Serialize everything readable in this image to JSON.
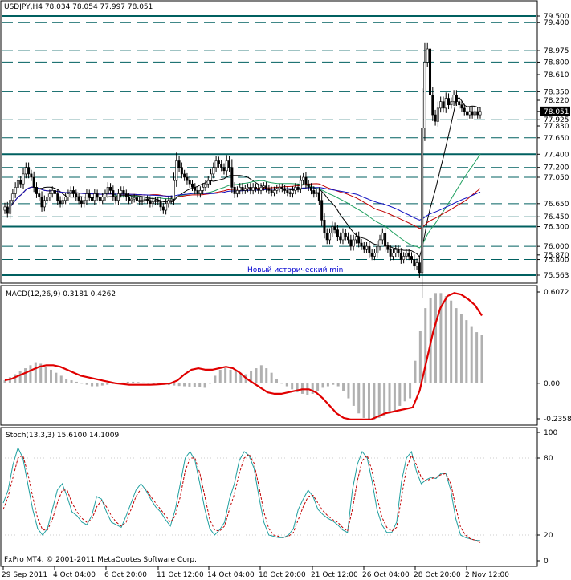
{
  "header": {
    "text": "USDJPY,H4  78.034 78.054 77.997 78.051"
  },
  "annotation": "Новый исторический min",
  "copyright": "FxPro MT4, © 2001-2011 MetaQuotes Software Corp.",
  "colors": {
    "frame": "#000000",
    "level": "#006060",
    "ma_black": "#000000",
    "ma_blue": "#1010c0",
    "ma_red": "#c00000",
    "ma_green": "#20a060",
    "macd_hist": "#b0b0b0",
    "macd_signal": "#e00000",
    "stoch_main": "#20a0a0",
    "stoch_signal": "#c00000",
    "annotation": "#0000d0"
  },
  "chart_data": [
    {
      "type": "candlestick",
      "title": "USDJPY,H4  78.034 78.054 77.997 78.051",
      "ylim": [
        75.5,
        79.55
      ],
      "price_labels": [
        "79.500",
        "79.400",
        "78.975",
        "78.800",
        "78.610",
        "78.350",
        "78.220",
        "78.051",
        "77.925",
        "77.830",
        "77.650",
        "77.400",
        "77.200",
        "77.050",
        "76.650",
        "76.450",
        "76.300",
        "76.000",
        "75.870",
        "75.800",
        "75.563"
      ],
      "price_values": [
        79.5,
        79.4,
        78.975,
        78.8,
        78.61,
        78.35,
        78.22,
        78.051,
        77.925,
        77.83,
        77.65,
        77.4,
        77.2,
        77.05,
        76.65,
        76.45,
        76.3,
        76.0,
        75.87,
        75.8,
        75.563
      ],
      "current_price": 78.051,
      "horizontal_levels": {
        "solid": [
          79.5,
          77.4,
          76.3,
          75.563
        ],
        "dashed": [
          79.4,
          78.975,
          78.8,
          78.35,
          77.925,
          77.65,
          77.2,
          77.05,
          76.65,
          76.45,
          76.0,
          75.8
        ]
      },
      "x_labels": [
        "29 Sep 2011",
        "4 Oct 04:00",
        "6 Oct 20:00",
        "11 Oct 12:00",
        "14 Oct 04:00",
        "18 Oct 20:00",
        "21 Oct 12:00",
        "26 Oct 04:00",
        "28 Oct 20:00",
        "2 Nov 12:00"
      ],
      "closes": [
        76.6,
        76.5,
        76.7,
        76.8,
        76.9,
        77.0,
        76.95,
        77.1,
        77.2,
        77.1,
        77.05,
        76.9,
        76.8,
        76.75,
        76.6,
        76.7,
        76.75,
        76.8,
        76.85,
        76.8,
        76.7,
        76.65,
        76.7,
        76.75,
        76.8,
        76.85,
        76.8,
        76.75,
        76.7,
        76.65,
        76.7,
        76.8,
        76.75,
        76.7,
        76.8,
        76.75,
        76.7,
        76.75,
        76.8,
        76.9,
        76.85,
        76.75,
        76.7,
        76.8,
        76.85,
        76.8,
        76.75,
        76.7,
        76.72,
        76.74,
        76.7,
        76.68,
        76.7,
        76.72,
        76.7,
        76.65,
        76.68,
        76.7,
        76.68,
        76.6,
        76.55,
        76.65,
        76.7,
        76.72,
        77.0,
        77.3,
        77.2,
        77.1,
        77.05,
        77.0,
        76.95,
        76.9,
        76.85,
        76.8,
        76.85,
        76.9,
        76.95,
        77.0,
        77.1,
        77.2,
        77.3,
        77.25,
        77.2,
        77.15,
        77.3,
        77.2,
        76.9,
        76.8,
        76.85,
        76.9,
        76.85,
        76.88,
        76.9,
        76.85,
        76.9,
        76.88,
        76.85,
        76.9,
        76.92,
        76.88,
        76.85,
        76.82,
        76.85,
        76.88,
        76.9,
        76.88,
        76.85,
        76.82,
        76.8,
        76.85,
        76.9,
        76.88,
        77.0,
        77.05,
        76.95,
        76.9,
        76.85,
        76.8,
        76.82,
        76.7,
        76.4,
        76.2,
        76.1,
        76.2,
        76.3,
        76.25,
        76.15,
        76.1,
        76.2,
        76.15,
        76.1,
        76.0,
        76.1,
        76.15,
        76.05,
        76.0,
        75.95,
        76.0,
        75.9,
        75.85,
        75.9,
        76.0,
        76.1,
        76.2,
        76.0,
        75.95,
        75.85,
        75.9,
        75.95,
        75.9,
        75.8,
        75.85,
        75.9,
        75.85,
        75.8,
        75.7,
        75.75,
        75.6,
        77.8,
        78.8,
        79.0,
        78.3,
        78.0,
        77.9,
        78.1,
        78.2,
        78.1,
        78.25,
        78.15,
        78.2,
        78.3,
        78.2,
        78.15,
        78.1,
        78.05,
        78.0,
        78.05,
        78.0,
        78.05,
        78.0,
        78.051
      ]
    },
    {
      "type": "bar",
      "title": "MACD(12,26,9) 0.3181 0.4262",
      "ylim": [
        -0.2358,
        0.6072
      ],
      "tick_labels": [
        "0.6072",
        "0.00",
        "-0.2358"
      ],
      "tick_values": [
        0.6072,
        0.0,
        -0.2358
      ],
      "histogram": [
        0.02,
        0.04,
        0.06,
        0.08,
        0.1,
        0.12,
        0.14,
        0.13,
        0.11,
        0.09,
        0.07,
        0.05,
        0.03,
        0.02,
        0.01,
        0.0,
        -0.01,
        -0.02,
        -0.02,
        -0.015,
        -0.01,
        -0.005,
        0.0,
        0.005,
        0.01,
        0.01,
        0.008,
        0.005,
        0.0,
        -0.005,
        -0.01,
        -0.01,
        -0.012,
        -0.015,
        -0.018,
        -0.02,
        -0.022,
        -0.024,
        -0.026,
        -0.03,
        0.0,
        0.05,
        0.09,
        0.1,
        0.09,
        0.08,
        0.07,
        0.06,
        0.08,
        0.1,
        0.12,
        0.1,
        0.07,
        0.03,
        0.0,
        -0.02,
        -0.04,
        -0.06,
        -0.07,
        -0.08,
        -0.07,
        -0.05,
        -0.03,
        -0.02,
        -0.01,
        -0.02,
        -0.05,
        -0.1,
        -0.15,
        -0.2,
        -0.23,
        -0.24,
        -0.24,
        -0.23,
        -0.22,
        -0.2,
        -0.18,
        -0.15,
        -0.12,
        -0.1,
        0.15,
        0.35,
        0.5,
        0.57,
        0.6,
        0.6,
        0.58,
        0.55,
        0.5,
        0.46,
        0.42,
        0.38,
        0.34,
        0.32
      ],
      "signal": [
        0.02,
        0.03,
        0.05,
        0.07,
        0.09,
        0.11,
        0.12,
        0.12,
        0.11,
        0.09,
        0.07,
        0.05,
        0.04,
        0.03,
        0.02,
        0.01,
        0.0,
        -0.005,
        -0.01,
        -0.01,
        -0.01,
        -0.01,
        -0.008,
        -0.005,
        0.0,
        0.02,
        0.06,
        0.09,
        0.1,
        0.09,
        0.09,
        0.1,
        0.11,
        0.1,
        0.07,
        0.03,
        0.0,
        -0.03,
        -0.06,
        -0.07,
        -0.07,
        -0.06,
        -0.05,
        -0.04,
        -0.04,
        -0.06,
        -0.1,
        -0.15,
        -0.2,
        -0.23,
        -0.24,
        -0.24,
        -0.24,
        -0.24,
        -0.22,
        -0.2,
        -0.19,
        -0.18,
        -0.17,
        -0.16,
        -0.05,
        0.15,
        0.35,
        0.5,
        0.58,
        0.6,
        0.59,
        0.56,
        0.52,
        0.45
      ]
    },
    {
      "type": "line",
      "title": "Stoch(13,3,3) 15.6100 14.1009",
      "ylim": [
        0,
        100
      ],
      "tick_labels": [
        "100",
        "80",
        "20",
        "0"
      ],
      "tick_values": [
        100,
        80,
        20,
        0
      ],
      "series": [
        {
          "name": "",
          "values": [
            45,
            55,
            75,
            88,
            80,
            60,
            40,
            25,
            20,
            25,
            40,
            55,
            60,
            50,
            38,
            35,
            30,
            28,
            35,
            50,
            48,
            38,
            30,
            28,
            26,
            35,
            45,
            55,
            60,
            55,
            48,
            42,
            38,
            32,
            27,
            40,
            60,
            80,
            85,
            78,
            60,
            40,
            25,
            20,
            24,
            30,
            48,
            60,
            78,
            85,
            82,
            72,
            50,
            30,
            20,
            19,
            18,
            18,
            20,
            25,
            40,
            48,
            55,
            50,
            40,
            36,
            33,
            31,
            28,
            24,
            22,
            55,
            75,
            85,
            80,
            62,
            40,
            28,
            22,
            22,
            30,
            62,
            80,
            85,
            70,
            60,
            63,
            65,
            64,
            68,
            68,
            55,
            33,
            20,
            18,
            17,
            16,
            15.61
          ]
        },
        {
          "name": "",
          "values": [
            40,
            50,
            65,
            80,
            82,
            68,
            50,
            33,
            24,
            24,
            32,
            45,
            55,
            55,
            45,
            38,
            33,
            30,
            32,
            42,
            47,
            42,
            35,
            30,
            27,
            30,
            40,
            50,
            56,
            56,
            50,
            45,
            40,
            35,
            30,
            35,
            50,
            70,
            80,
            80,
            68,
            50,
            32,
            24,
            23,
            27,
            40,
            52,
            68,
            80,
            83,
            76,
            58,
            38,
            25,
            20,
            19,
            18,
            19,
            22,
            32,
            42,
            50,
            51,
            45,
            39,
            35,
            32,
            30,
            26,
            23,
            40,
            62,
            78,
            82,
            70,
            50,
            34,
            26,
            23,
            26,
            50,
            72,
            82,
            75,
            65,
            62,
            64,
            65,
            67,
            68,
            60,
            42,
            26,
            20,
            17,
            16,
            14.1009
          ]
        }
      ]
    }
  ]
}
